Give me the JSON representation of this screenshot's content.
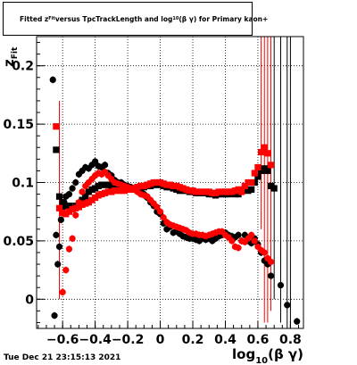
{
  "chart_data": {
    "type": "scatter",
    "title": "Fitted z_{Fit} versus TpcTrackLength and log_{10}(βγ) for Primary kaon+",
    "title_parts": {
      "prefix": "Fitted  z",
      "sub": "Fit",
      "middle": "  versus TpcTrackLength and log",
      "sub2": "10",
      "suffix": "(β γ) for Primary kaon+"
    },
    "xlabel": "log_{10}(β γ)",
    "xlabel_main": "log",
    "xlabel_sub": "10",
    "xlabel_suffix": "(β γ)",
    "ylabel": "z_{Fit}",
    "ylabel_main": "z",
    "ylabel_sub": "Fit",
    "xlim": [
      -0.76,
      0.88
    ],
    "ylim": [
      -0.025,
      0.225
    ],
    "xticks": [
      -0.6,
      -0.4,
      -0.2,
      0,
      0.2,
      0.4,
      0.6,
      0.8
    ],
    "xtick_labels": [
      "−0.6",
      "−0.4",
      "−0.2",
      "0",
      "0.2",
      "0.4",
      "0.6",
      "0.8"
    ],
    "yticks": [
      0,
      0.05,
      0.1,
      0.15,
      0.2
    ],
    "ytick_labels": [
      "0",
      "0.05",
      "0.1",
      "0.15",
      "0.2"
    ],
    "grid": true,
    "series": [
      {
        "color": "#000000",
        "marker": "circle",
        "points": [
          [
            -0.66,
            0.188
          ],
          [
            -0.65,
            -0.014
          ],
          [
            -0.64,
            0.055
          ],
          [
            -0.63,
            0.03
          ],
          [
            -0.62,
            0.045
          ],
          [
            -0.61,
            0.068
          ],
          [
            -0.6,
            0.078
          ],
          [
            -0.59,
            0.083
          ],
          [
            -0.58,
            0.088
          ],
          [
            -0.56,
            0.09
          ],
          [
            -0.54,
            0.095
          ],
          [
            -0.52,
            0.1
          ],
          [
            -0.5,
            0.107
          ],
          [
            -0.48,
            0.11
          ],
          [
            -0.46,
            0.113
          ],
          [
            -0.44,
            0.112
          ],
          [
            -0.42,
            0.115
          ],
          [
            -0.4,
            0.118
          ],
          [
            -0.38,
            0.114
          ],
          [
            -0.36,
            0.113
          ],
          [
            -0.34,
            0.115
          ],
          [
            -0.32,
            0.108
          ],
          [
            -0.3,
            0.106
          ],
          [
            -0.28,
            0.102
          ],
          [
            -0.26,
            0.1
          ],
          [
            -0.24,
            0.1
          ],
          [
            -0.22,
            0.098
          ],
          [
            -0.2,
            0.097
          ],
          [
            -0.18,
            0.096
          ],
          [
            -0.16,
            0.094
          ],
          [
            -0.14,
            0.093
          ],
          [
            -0.12,
            0.092
          ],
          [
            -0.1,
            0.09
          ],
          [
            -0.08,
            0.087
          ],
          [
            -0.06,
            0.083
          ],
          [
            -0.04,
            0.08
          ],
          [
            -0.02,
            0.075
          ],
          [
            0.0,
            0.073
          ],
          [
            0.02,
            0.065
          ],
          [
            0.04,
            0.06
          ],
          [
            0.06,
            0.062
          ],
          [
            0.08,
            0.057
          ],
          [
            0.1,
            0.058
          ],
          [
            0.12,
            0.056
          ],
          [
            0.14,
            0.054
          ],
          [
            0.16,
            0.053
          ],
          [
            0.18,
            0.052
          ],
          [
            0.2,
            0.052
          ],
          [
            0.22,
            0.051
          ],
          [
            0.24,
            0.05
          ],
          [
            0.26,
            0.052
          ],
          [
            0.28,
            0.051
          ],
          [
            0.3,
            0.052
          ],
          [
            0.32,
            0.05
          ],
          [
            0.34,
            0.052
          ],
          [
            0.36,
            0.054
          ],
          [
            0.38,
            0.055
          ],
          [
            0.4,
            0.057
          ],
          [
            0.42,
            0.055
          ],
          [
            0.44,
            0.054
          ],
          [
            0.46,
            0.053
          ],
          [
            0.48,
            0.055
          ],
          [
            0.5,
            0.05
          ],
          [
            0.52,
            0.055
          ],
          [
            0.54,
            0.05
          ],
          [
            0.56,
            0.048
          ],
          [
            0.58,
            0.052
          ],
          [
            0.6,
            0.047
          ],
          [
            0.62,
            0.04
          ],
          [
            0.64,
            0.033
          ],
          [
            0.66,
            0.03
          ],
          [
            0.68,
            0.02
          ],
          [
            0.74,
            0.012
          ],
          [
            0.78,
            -0.005
          ],
          [
            0.84,
            -0.019
          ]
        ],
        "err": 0.003
      },
      {
        "color": "#000000",
        "marker": "square",
        "points": [
          [
            -0.64,
            0.128
          ],
          [
            -0.62,
            0.088
          ],
          [
            -0.6,
            0.083
          ],
          [
            -0.58,
            0.08
          ],
          [
            -0.56,
            0.08
          ],
          [
            -0.54,
            0.078
          ],
          [
            -0.52,
            0.08
          ],
          [
            -0.5,
            0.082
          ],
          [
            -0.48,
            0.085
          ],
          [
            -0.46,
            0.088
          ],
          [
            -0.44,
            0.092
          ],
          [
            -0.42,
            0.094
          ],
          [
            -0.4,
            0.095
          ],
          [
            -0.38,
            0.097
          ],
          [
            -0.36,
            0.098
          ],
          [
            -0.34,
            0.098
          ],
          [
            -0.32,
            0.098
          ],
          [
            -0.3,
            0.097
          ],
          [
            -0.28,
            0.096
          ],
          [
            -0.26,
            0.095
          ],
          [
            -0.24,
            0.095
          ],
          [
            -0.22,
            0.095
          ],
          [
            -0.2,
            0.094
          ],
          [
            -0.18,
            0.094
          ],
          [
            -0.16,
            0.095
          ],
          [
            -0.14,
            0.096
          ],
          [
            -0.12,
            0.096
          ],
          [
            -0.1,
            0.096
          ],
          [
            -0.08,
            0.097
          ],
          [
            -0.06,
            0.097
          ],
          [
            -0.04,
            0.098
          ],
          [
            -0.02,
            0.098
          ],
          [
            0.0,
            0.098
          ],
          [
            0.02,
            0.097
          ],
          [
            0.04,
            0.096
          ],
          [
            0.06,
            0.096
          ],
          [
            0.08,
            0.095
          ],
          [
            0.1,
            0.094
          ],
          [
            0.12,
            0.093
          ],
          [
            0.14,
            0.093
          ],
          [
            0.16,
            0.093
          ],
          [
            0.18,
            0.092
          ],
          [
            0.2,
            0.092
          ],
          [
            0.22,
            0.091
          ],
          [
            0.24,
            0.091
          ],
          [
            0.26,
            0.091
          ],
          [
            0.28,
            0.091
          ],
          [
            0.3,
            0.09
          ],
          [
            0.32,
            0.09
          ],
          [
            0.34,
            0.089
          ],
          [
            0.36,
            0.09
          ],
          [
            0.38,
            0.09
          ],
          [
            0.4,
            0.09
          ],
          [
            0.42,
            0.09
          ],
          [
            0.44,
            0.091
          ],
          [
            0.46,
            0.09
          ],
          [
            0.48,
            0.09
          ],
          [
            0.5,
            0.093
          ],
          [
            0.52,
            0.094
          ],
          [
            0.54,
            0.093
          ],
          [
            0.56,
            0.094
          ],
          [
            0.58,
            0.1
          ],
          [
            0.6,
            0.105
          ],
          [
            0.62,
            0.11
          ],
          [
            0.64,
            0.112
          ],
          [
            0.66,
            0.11
          ],
          [
            0.68,
            0.097
          ],
          [
            0.7,
            0.095
          ]
        ],
        "err": 0.002
      },
      {
        "color": "#ff0000",
        "marker": "circle",
        "points": [
          [
            -0.6,
            0.006
          ],
          [
            -0.58,
            0.025
          ],
          [
            -0.56,
            0.043
          ],
          [
            -0.54,
            0.052
          ],
          [
            -0.52,
            0.072
          ],
          [
            -0.5,
            0.083
          ],
          [
            -0.48,
            0.092
          ],
          [
            -0.46,
            0.097
          ],
          [
            -0.44,
            0.1
          ],
          [
            -0.42,
            0.103
          ],
          [
            -0.4,
            0.106
          ],
          [
            -0.38,
            0.108
          ],
          [
            -0.36,
            0.107
          ],
          [
            -0.34,
            0.109
          ],
          [
            -0.32,
            0.106
          ],
          [
            -0.3,
            0.103
          ],
          [
            -0.28,
            0.1
          ],
          [
            -0.26,
            0.099
          ],
          [
            -0.24,
            0.098
          ],
          [
            -0.22,
            0.097
          ],
          [
            -0.2,
            0.096
          ],
          [
            -0.18,
            0.095
          ],
          [
            -0.16,
            0.094
          ],
          [
            -0.14,
            0.092
          ],
          [
            -0.12,
            0.09
          ],
          [
            -0.1,
            0.089
          ],
          [
            -0.08,
            0.088
          ],
          [
            -0.06,
            0.085
          ],
          [
            -0.04,
            0.082
          ],
          [
            -0.02,
            0.079
          ],
          [
            0.0,
            0.075
          ],
          [
            0.02,
            0.07
          ],
          [
            0.04,
            0.066
          ],
          [
            0.06,
            0.064
          ],
          [
            0.08,
            0.063
          ],
          [
            0.1,
            0.062
          ],
          [
            0.12,
            0.061
          ],
          [
            0.14,
            0.06
          ],
          [
            0.16,
            0.059
          ],
          [
            0.18,
            0.057
          ],
          [
            0.2,
            0.056
          ],
          [
            0.22,
            0.056
          ],
          [
            0.24,
            0.055
          ],
          [
            0.26,
            0.055
          ],
          [
            0.28,
            0.054
          ],
          [
            0.3,
            0.055
          ],
          [
            0.32,
            0.056
          ],
          [
            0.34,
            0.057
          ],
          [
            0.36,
            0.058
          ],
          [
            0.38,
            0.058
          ],
          [
            0.4,
            0.055
          ],
          [
            0.42,
            0.053
          ],
          [
            0.44,
            0.05
          ],
          [
            0.46,
            0.045
          ],
          [
            0.48,
            0.044
          ],
          [
            0.5,
            0.05
          ],
          [
            0.52,
            0.049
          ],
          [
            0.54,
            0.052
          ],
          [
            0.56,
            0.055
          ],
          [
            0.58,
            0.05
          ],
          [
            0.6,
            0.045
          ],
          [
            0.62,
            0.042
          ],
          [
            0.64,
            0.04
          ],
          [
            0.66,
            0.035
          ],
          [
            0.68,
            0.032
          ]
        ],
        "err": 0.003
      },
      {
        "color": "#ff0000",
        "marker": "square",
        "points": [
          [
            -0.64,
            0.148
          ],
          [
            -0.62,
            0.078
          ],
          [
            -0.6,
            0.074
          ],
          [
            -0.58,
            0.073
          ],
          [
            -0.56,
            0.075
          ],
          [
            -0.54,
            0.077
          ],
          [
            -0.52,
            0.078
          ],
          [
            -0.5,
            0.079
          ],
          [
            -0.48,
            0.081
          ],
          [
            -0.46,
            0.082
          ],
          [
            -0.44,
            0.083
          ],
          [
            -0.42,
            0.085
          ],
          [
            -0.4,
            0.087
          ],
          [
            -0.38,
            0.089
          ],
          [
            -0.36,
            0.09
          ],
          [
            -0.34,
            0.091
          ],
          [
            -0.32,
            0.092
          ],
          [
            -0.3,
            0.092
          ],
          [
            -0.28,
            0.093
          ],
          [
            -0.26,
            0.093
          ],
          [
            -0.24,
            0.093
          ],
          [
            -0.22,
            0.093
          ],
          [
            -0.2,
            0.094
          ],
          [
            -0.18,
            0.094
          ],
          [
            -0.16,
            0.095
          ],
          [
            -0.14,
            0.096
          ],
          [
            -0.12,
            0.097
          ],
          [
            -0.1,
            0.097
          ],
          [
            -0.08,
            0.098
          ],
          [
            -0.06,
            0.099
          ],
          [
            -0.04,
            0.1
          ],
          [
            -0.02,
            0.1
          ],
          [
            0.0,
            0.1
          ],
          [
            0.02,
            0.099
          ],
          [
            0.04,
            0.098
          ],
          [
            0.06,
            0.098
          ],
          [
            0.08,
            0.097
          ],
          [
            0.1,
            0.097
          ],
          [
            0.12,
            0.096
          ],
          [
            0.14,
            0.095
          ],
          [
            0.16,
            0.094
          ],
          [
            0.18,
            0.093
          ],
          [
            0.2,
            0.093
          ],
          [
            0.22,
            0.092
          ],
          [
            0.24,
            0.092
          ],
          [
            0.26,
            0.092
          ],
          [
            0.28,
            0.092
          ],
          [
            0.3,
            0.092
          ],
          [
            0.32,
            0.091
          ],
          [
            0.34,
            0.091
          ],
          [
            0.36,
            0.092
          ],
          [
            0.38,
            0.092
          ],
          [
            0.4,
            0.092
          ],
          [
            0.42,
            0.092
          ],
          [
            0.44,
            0.092
          ],
          [
            0.46,
            0.093
          ],
          [
            0.48,
            0.094
          ],
          [
            0.5,
            0.092
          ],
          [
            0.52,
            0.097
          ],
          [
            0.54,
            0.1
          ],
          [
            0.56,
            0.1
          ],
          [
            0.58,
            0.108
          ],
          [
            0.6,
            0.113
          ],
          [
            0.62,
            0.126
          ],
          [
            0.64,
            0.13
          ],
          [
            0.66,
            0.125
          ],
          [
            0.68,
            0.115
          ]
        ],
        "err": 0.002
      }
    ],
    "error_bars_large": [
      {
        "color": "#ff0000",
        "x": -0.62,
        "y": 0.148,
        "lo": 0.0,
        "hi": 0.17
      },
      {
        "color": "#ff0000",
        "x": 0.62,
        "y": 0.126,
        "lo": 0.06,
        "hi": 0.225
      },
      {
        "color": "#ff0000",
        "x": 0.64,
        "y": 0.13,
        "lo": -0.02,
        "hi": 0.225
      },
      {
        "color": "#ff0000",
        "x": 0.66,
        "y": 0.125,
        "lo": -0.02,
        "hi": 0.225
      },
      {
        "color": "#ff0000",
        "x": 0.68,
        "y": 0.115,
        "lo": -0.01,
        "hi": 0.225
      },
      {
        "color": "#000000",
        "x": 0.7,
        "y": 0.095,
        "lo": 0.0,
        "hi": 0.225
      },
      {
        "color": "#000000",
        "x": 0.74,
        "y": 0.012,
        "lo": -0.02,
        "hi": 0.225
      },
      {
        "color": "#000000",
        "x": 0.78,
        "y": -0.005,
        "lo": -0.025,
        "hi": 0.225
      },
      {
        "color": "#000000",
        "x": 0.8,
        "y": 0.02,
        "lo": -0.025,
        "hi": 0.225
      }
    ]
  },
  "timestamp": "Tue Dec 21 23:15:13 2021"
}
